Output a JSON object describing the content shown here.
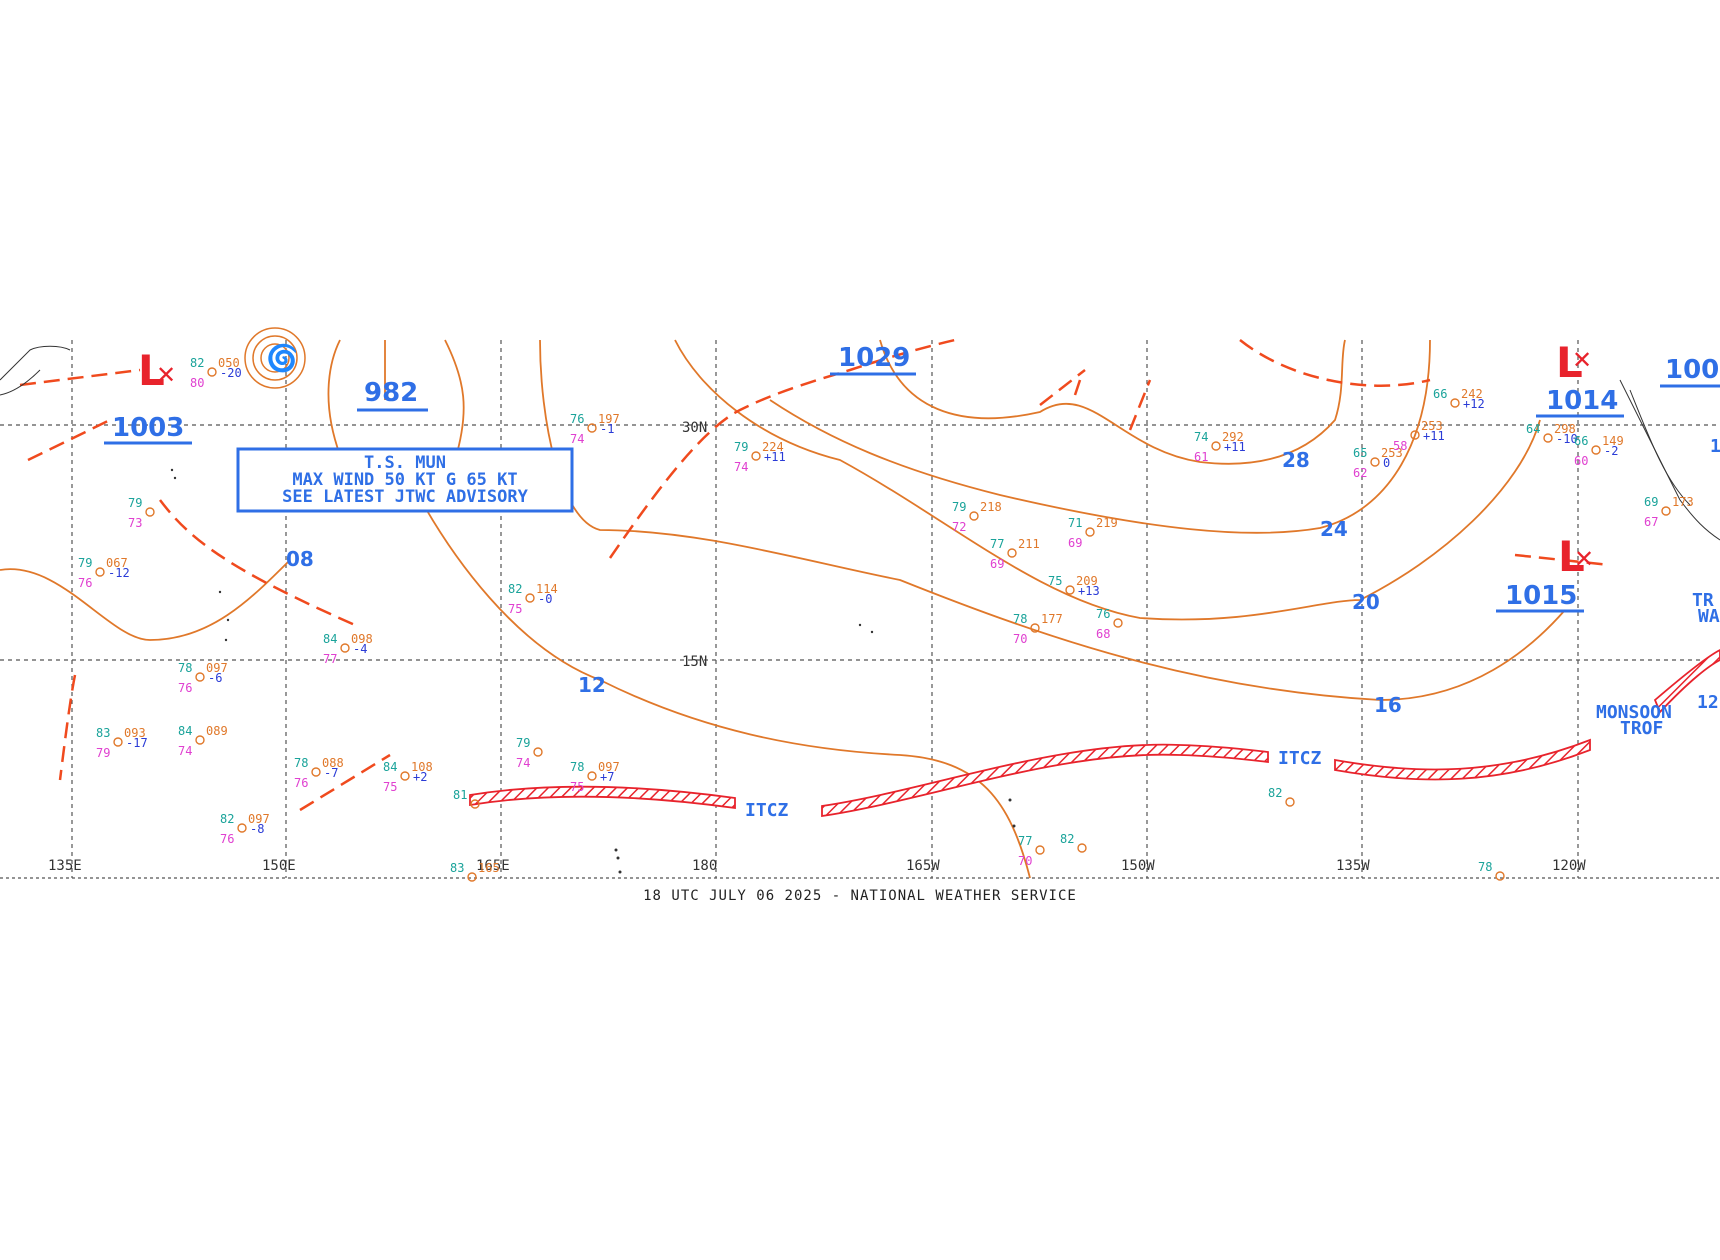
{
  "footer": "18 UTC JULY 06 2025 - NATIONAL WEATHER SERVICE",
  "colors": {
    "isobar": "#e0782a",
    "front": "#f04a1e",
    "itcz": "#e8232c",
    "label": "#2f6fe6",
    "low": "#e8232c",
    "grid": "#555555",
    "obs_temp": "#1aa39a",
    "obs_dew": "#e040d0",
    "obs_press": "#e0782a",
    "obs_tend": "#2a3bd6"
  },
  "grid": {
    "lon_labels": [
      "135E",
      "150E",
      "165E",
      "180",
      "165W",
      "150W",
      "135W",
      "120W"
    ],
    "lat_labels": [
      "30N",
      "15N"
    ]
  },
  "pressure_centers": [
    {
      "kind": "L",
      "value": "1003"
    },
    {
      "kind": "",
      "value": "982"
    },
    {
      "kind": "",
      "value": "1029"
    },
    {
      "kind": "L",
      "value": "1014"
    },
    {
      "kind": "L",
      "value": "1015"
    },
    {
      "kind": "",
      "value": "100"
    }
  ],
  "isobar_labels": [
    "08",
    "12",
    "16",
    "20",
    "24",
    "28"
  ],
  "features": [
    "ITCZ",
    "ITCZ",
    "MONSOON",
    "TROF",
    "TR",
    "WA",
    "12",
    "1"
  ],
  "advisory": [
    "T.S. MUN",
    "MAX WIND 50 KT G 65 KT",
    "SEE LATEST JTWC ADVISORY"
  ],
  "storm_symbol": "tropical-storm-icon",
  "observations": [
    {
      "t": "79",
      "p": "067",
      "d": "76",
      "tend": "-12"
    },
    {
      "t": "79",
      "p": "",
      "d": "73",
      "tend": ""
    },
    {
      "t": "82",
      "p": "050",
      "d": "80",
      "tend": "-20"
    },
    {
      "t": "76",
      "p": "197",
      "d": "74",
      "tend": "-1"
    },
    {
      "t": "79",
      "p": "224",
      "d": "74",
      "tend": "+11"
    },
    {
      "t": "82",
      "p": "114",
      "d": "75",
      "tend": "-0"
    },
    {
      "t": "84",
      "p": "098",
      "d": "77",
      "tend": "-4"
    },
    {
      "t": "78",
      "p": "097",
      "d": "76",
      "tend": "-6"
    },
    {
      "t": "83",
      "p": "093",
      "d": "79",
      "tend": "-17"
    },
    {
      "t": "84",
      "p": "089",
      "d": "74",
      "tend": ""
    },
    {
      "t": "78",
      "p": "088",
      "d": "76",
      "tend": "-7"
    },
    {
      "t": "84",
      "p": "108",
      "d": "75",
      "tend": "+2"
    },
    {
      "t": "79",
      "p": "",
      "d": "74",
      "tend": ""
    },
    {
      "t": "78",
      "p": "097",
      "d": "75",
      "tend": "+7"
    },
    {
      "t": "82",
      "p": "097",
      "d": "76",
      "tend": "-8"
    },
    {
      "t": "79",
      "p": "218",
      "d": "72",
      "tend": ""
    },
    {
      "t": "77",
      "p": "211",
      "d": "69",
      "tend": ""
    },
    {
      "t": "71",
      "p": "219",
      "d": "69",
      "tend": ""
    },
    {
      "t": "75",
      "p": "209",
      "d": "",
      "tend": "+13"
    },
    {
      "t": "78",
      "p": "177",
      "d": "70",
      "tend": ""
    },
    {
      "t": "76",
      "p": "",
      "d": "68",
      "tend": ""
    },
    {
      "t": "74",
      "p": "292",
      "d": "61",
      "tend": "+11"
    },
    {
      "t": "65",
      "p": "253",
      "d": "62",
      "tend": "0"
    },
    {
      "t": "66",
      "p": "242",
      "d": "",
      "tend": "+12"
    },
    {
      "t": "",
      "p": "253",
      "d": "58",
      "tend": "+11"
    },
    {
      "t": "64",
      "p": "298",
      "d": "",
      "tend": "-10"
    },
    {
      "t": "66",
      "p": "149",
      "d": "60",
      "tend": "-2"
    },
    {
      "t": "69",
      "p": "173",
      "d": "67",
      "tend": ""
    },
    {
      "t": "77",
      "p": "",
      "d": "70",
      "tend": ""
    },
    {
      "t": "82",
      "p": "",
      "d": "",
      "tend": ""
    },
    {
      "t": "81",
      "p": "",
      "d": "",
      "tend": ""
    },
    {
      "t": "83",
      "p": "165",
      "d": "",
      "tend": ""
    },
    {
      "t": "78",
      "p": "",
      "d": "",
      "tend": ""
    },
    {
      "t": "82",
      "p": "",
      "d": "",
      "tend": ""
    }
  ]
}
